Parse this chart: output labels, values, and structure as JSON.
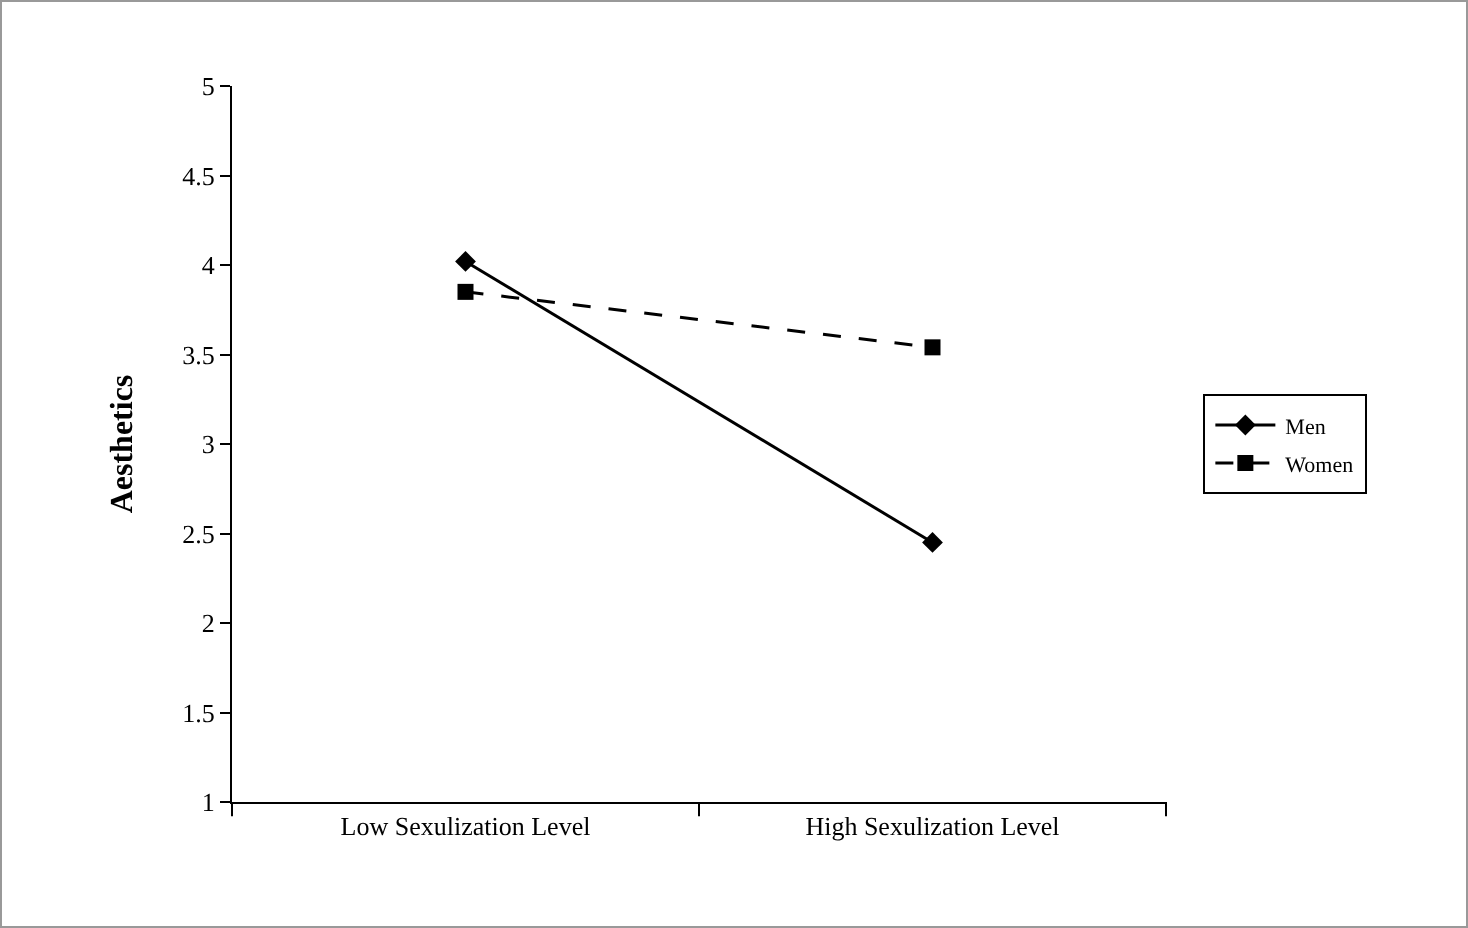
{
  "chart_data": {
    "type": "line",
    "ylabel": "Aesthetics",
    "categories": [
      "Low Sexulization Level",
      "High Sexulization Level"
    ],
    "ylim": [
      1,
      5
    ],
    "yticks": [
      1,
      1.5,
      2,
      2.5,
      3,
      3.5,
      4,
      4.5,
      5
    ],
    "grid": false,
    "legend": "right",
    "series": [
      {
        "name": "Men",
        "color": "#000000",
        "values": [
          4.02,
          2.45
        ],
        "marker": "diamond",
        "line_style": "solid"
      },
      {
        "name": "Women",
        "color": "#000000",
        "values": [
          3.85,
          3.54
        ],
        "marker": "square",
        "line_style": "dashed"
      }
    ]
  }
}
